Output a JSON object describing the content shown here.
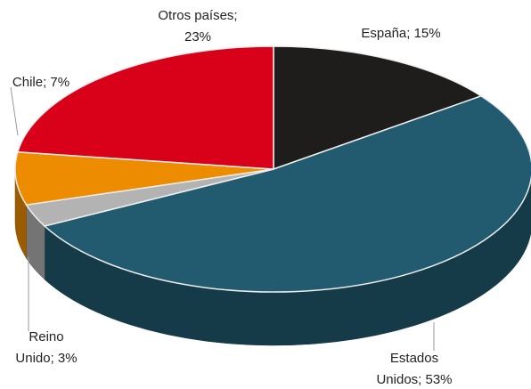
{
  "chart_data": {
    "type": "pie",
    "three_d": true,
    "values": [
      15,
      53,
      3,
      7,
      23
    ],
    "value_labels": [
      "España;  15%",
      "Estados\nUnidos;  53%",
      "Reino\nUnido; 3%",
      "Chile; 7%",
      "Otros países;\n23%"
    ],
    "colors": [
      "#1f1d1b",
      "#225b6f",
      "#b3b3b3",
      "#ee8c00",
      "#d9001a"
    ],
    "start_angle": 90,
    "direction": "clockwise"
  }
}
